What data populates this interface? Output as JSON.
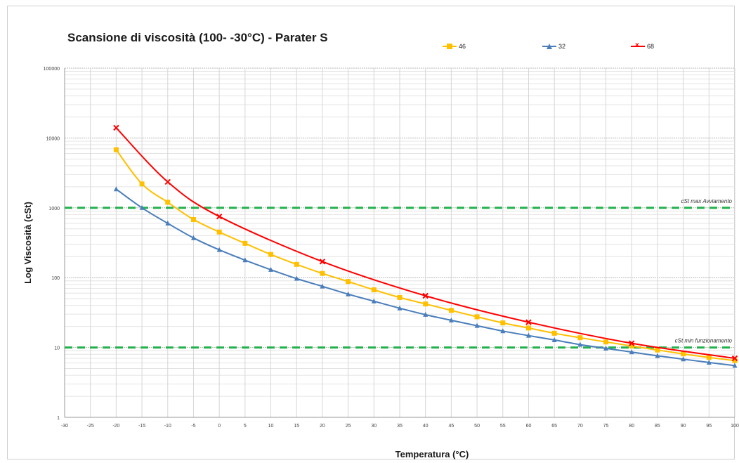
{
  "chart_data": {
    "type": "line",
    "title": "Scansione di viscosità (100- -30°C)  -  Parater S",
    "xlabel": "Temperatura (°C)",
    "ylabel": "Log Viscosità (cSt)",
    "x_scale": "linear",
    "y_scale": "log",
    "xlim": [
      -30,
      100
    ],
    "ylim": [
      1,
      100000
    ],
    "x_ticks": [
      "-30",
      "-25",
      "-20",
      "-15",
      "-10",
      "-5",
      "0",
      "5",
      "10",
      "15",
      "20",
      "25",
      "30",
      "35",
      "40",
      "45",
      "50",
      "55",
      "60",
      "65",
      "70",
      "75",
      "80",
      "85",
      "90",
      "95",
      "100"
    ],
    "y_ticks": [
      "1",
      "10",
      "100",
      "1000",
      "10000",
      "100000"
    ],
    "grid": true,
    "legend_position": "top",
    "x": [
      -20,
      -15,
      -10,
      -5,
      0,
      5,
      10,
      15,
      20,
      25,
      30,
      35,
      40,
      45,
      50,
      55,
      60,
      65,
      70,
      75,
      80,
      85,
      90,
      95,
      100
    ],
    "series": [
      {
        "name": "46",
        "color": "#ffc000",
        "marker": "square",
        "values": [
          6800,
          2200,
          1200,
          680,
          450,
          310,
          215,
          155,
          115,
          88,
          67,
          52,
          42,
          34,
          27.5,
          22.5,
          19,
          16,
          13.8,
          12,
          10.5,
          9.2,
          8.1,
          7.2,
          6.5
        ]
      },
      {
        "name": "32",
        "color": "#4a7ebb",
        "marker": "triangle",
        "values": [
          1850,
          1000,
          600,
          370,
          250,
          178,
          130,
          97,
          75,
          58,
          46,
          36.5,
          29.5,
          24.5,
          20.5,
          17.2,
          14.8,
          12.8,
          11,
          9.7,
          8.6,
          7.6,
          6.8,
          6.1,
          5.5
        ]
      },
      {
        "name": "68",
        "color": "#ff0000",
        "marker": "x",
        "values": [
          14000,
          null,
          2350,
          null,
          750,
          null,
          null,
          null,
          170,
          null,
          null,
          null,
          55,
          null,
          null,
          null,
          23,
          null,
          null,
          null,
          11.5,
          null,
          null,
          null,
          7
        ]
      }
    ],
    "reference_lines": [
      {
        "value": 1000,
        "label": "cSt max Avviamento",
        "color": "#22b14c"
      },
      {
        "value": 10,
        "label": "cSt min funzionamento",
        "color": "#22b14c"
      }
    ]
  }
}
